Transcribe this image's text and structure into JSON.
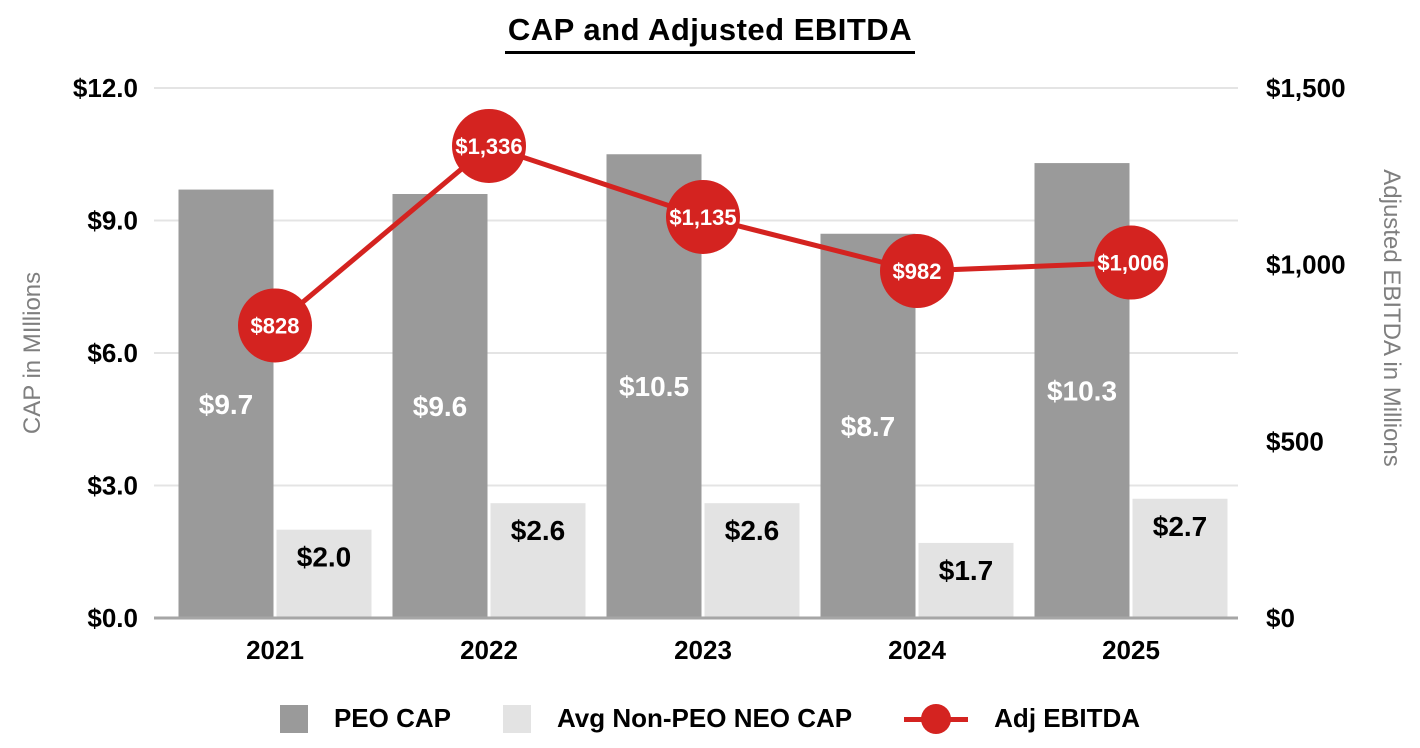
{
  "chart_data": {
    "type": "bar+line combo",
    "title": "CAP and Adjusted EBITDA",
    "categories": [
      "2021",
      "2022",
      "2023",
      "2024",
      "2025"
    ],
    "series": [
      {
        "name": "PEO CAP",
        "type": "bar",
        "axis": "left",
        "color": "#9a9a9a",
        "label_color": "#ffffff",
        "values": [
          9.7,
          9.6,
          10.5,
          8.7,
          10.3
        ],
        "labels": [
          "$9.7",
          "$9.6",
          "$10.5",
          "$8.7",
          "$10.3"
        ]
      },
      {
        "name": "Avg Non-PEO NEO CAP",
        "type": "bar",
        "axis": "left",
        "color": "#e3e3e3",
        "label_color": "#000000",
        "values": [
          2.0,
          2.6,
          2.6,
          1.7,
          2.7
        ],
        "labels": [
          "$2.0",
          "$2.6",
          "$2.6",
          "$1.7",
          "$2.7"
        ]
      },
      {
        "name": "Adj EBITDA",
        "type": "line",
        "axis": "right",
        "color": "#d42320",
        "label_color": "#ffffff",
        "values": [
          828,
          1336,
          1135,
          982,
          1006
        ],
        "labels": [
          "$828",
          "$1,336",
          "$1,135",
          "$982",
          "$1,006"
        ]
      }
    ],
    "left_axis": {
      "title": "CAP in MIllions",
      "min": 0,
      "max": 12,
      "tick_values": [
        0,
        3,
        6,
        9,
        12
      ],
      "ticks": [
        "$0.0",
        "$3.0",
        "$6.0",
        "$9.0",
        "$12.0"
      ]
    },
    "right_axis": {
      "title": "Adjusted EBITDA in Millions",
      "min": 0,
      "max": 1500,
      "tick_values": [
        0,
        500,
        1000,
        1500
      ],
      "ticks": [
        "$0",
        "$500",
        "$1,000",
        "$1,500"
      ]
    },
    "colors": {
      "grid": "#e4e4e4",
      "axis_line": "#a6a6a6",
      "axis_title": "#7f7f7f",
      "tick_label": "#000000"
    },
    "grid": true,
    "legend_position": "bottom"
  }
}
